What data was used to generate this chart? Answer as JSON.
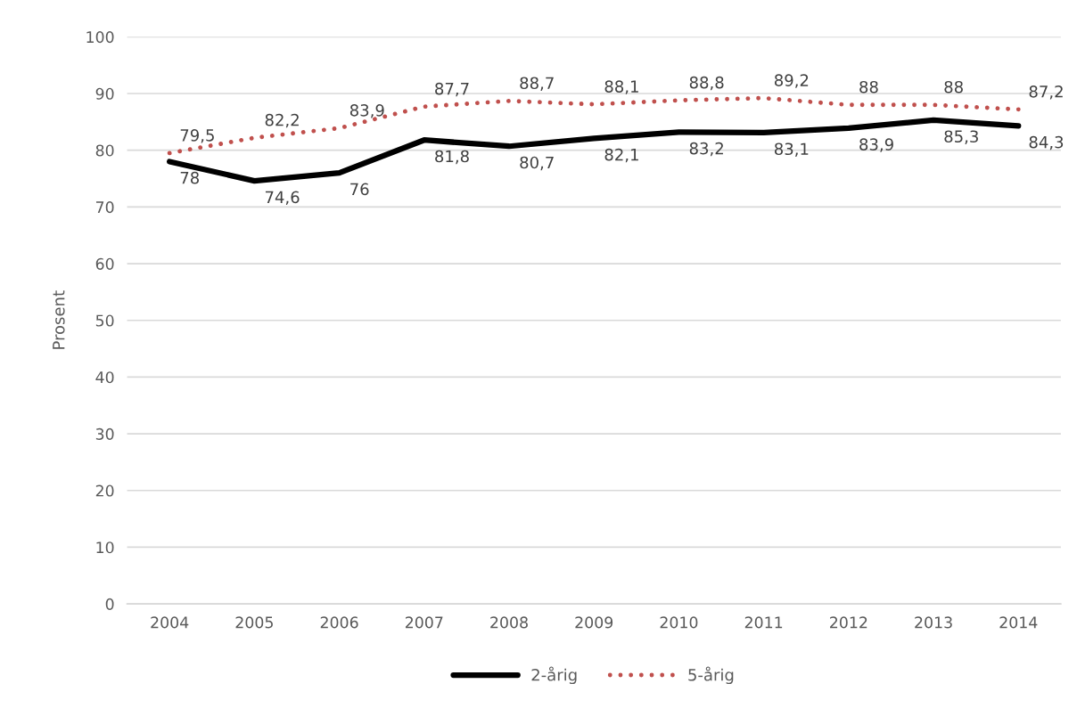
{
  "chart_data": {
    "type": "line",
    "ylabel": "Prosent",
    "categories": [
      "2004",
      "2005",
      "2006",
      "2007",
      "2008",
      "2009",
      "2010",
      "2011",
      "2012",
      "2013",
      "2014"
    ],
    "series": [
      {
        "name": "2-årig",
        "color": "#000000",
        "line_style": "solid",
        "values": [
          78,
          74.6,
          76,
          81.8,
          80.7,
          82.1,
          83.2,
          83.1,
          83.9,
          85.3,
          84.3
        ],
        "value_labels": [
          "78",
          "74,6",
          "76",
          "81,8",
          "80,7",
          "82,1",
          "83,2",
          "83,1",
          "83,9",
          "85,3",
          "84,3"
        ]
      },
      {
        "name": "5-årig",
        "color": "#c0504d",
        "line_style": "dotted",
        "values": [
          79.5,
          82.2,
          83.9,
          87.7,
          88.7,
          88.1,
          88.8,
          89.2,
          88,
          88,
          87.2
        ],
        "value_labels": [
          "79,5",
          "82,2",
          "83,9",
          "87,7",
          "88,7",
          "88,1",
          "88,8",
          "89,2",
          "88",
          "88",
          "87,2"
        ]
      }
    ],
    "ylim": [
      0,
      100
    ],
    "yticks": [
      0,
      10,
      20,
      30,
      40,
      50,
      60,
      70,
      80,
      90,
      100
    ],
    "grid": "y",
    "legend": "bottom"
  }
}
